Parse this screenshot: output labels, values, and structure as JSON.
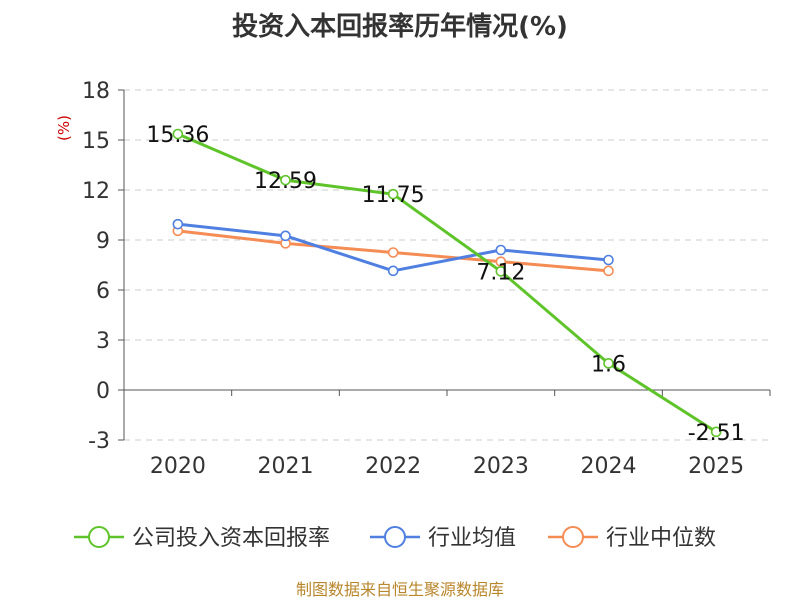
{
  "title": "投资入本回报率历年情况(%)",
  "unit_label": "(%)",
  "source": "制图数据来自恒生聚源数据库",
  "chart_data": {
    "type": "line",
    "title": "投资入本回报率历年情况(%)",
    "ylabel": "(%)",
    "xlabel": "",
    "categories": [
      "2020",
      "2021",
      "2022",
      "2023",
      "2024",
      "2025"
    ],
    "yticks": [
      "18",
      "15",
      "12",
      "9",
      "6",
      "3",
      "0",
      "-3"
    ],
    "ylim": [
      -3,
      18
    ],
    "grid": true,
    "legend_position": "bottom",
    "series": [
      {
        "name": "公司投入资本回报率",
        "color": "#5ec42a",
        "values": [
          15.36,
          12.59,
          11.75,
          7.12,
          1.6,
          -2.51
        ],
        "labels": [
          "15.36",
          "12.59",
          "11.75",
          "7.12",
          "1.6",
          "-2.51"
        ]
      },
      {
        "name": "行业均值",
        "color": "#4f7fe0",
        "values": [
          9.95,
          9.25,
          7.15,
          8.4,
          7.8,
          null
        ]
      },
      {
        "name": "行业中位数",
        "color": "#f48c54",
        "values": [
          9.55,
          8.8,
          8.25,
          7.7,
          7.15,
          null
        ]
      }
    ]
  }
}
